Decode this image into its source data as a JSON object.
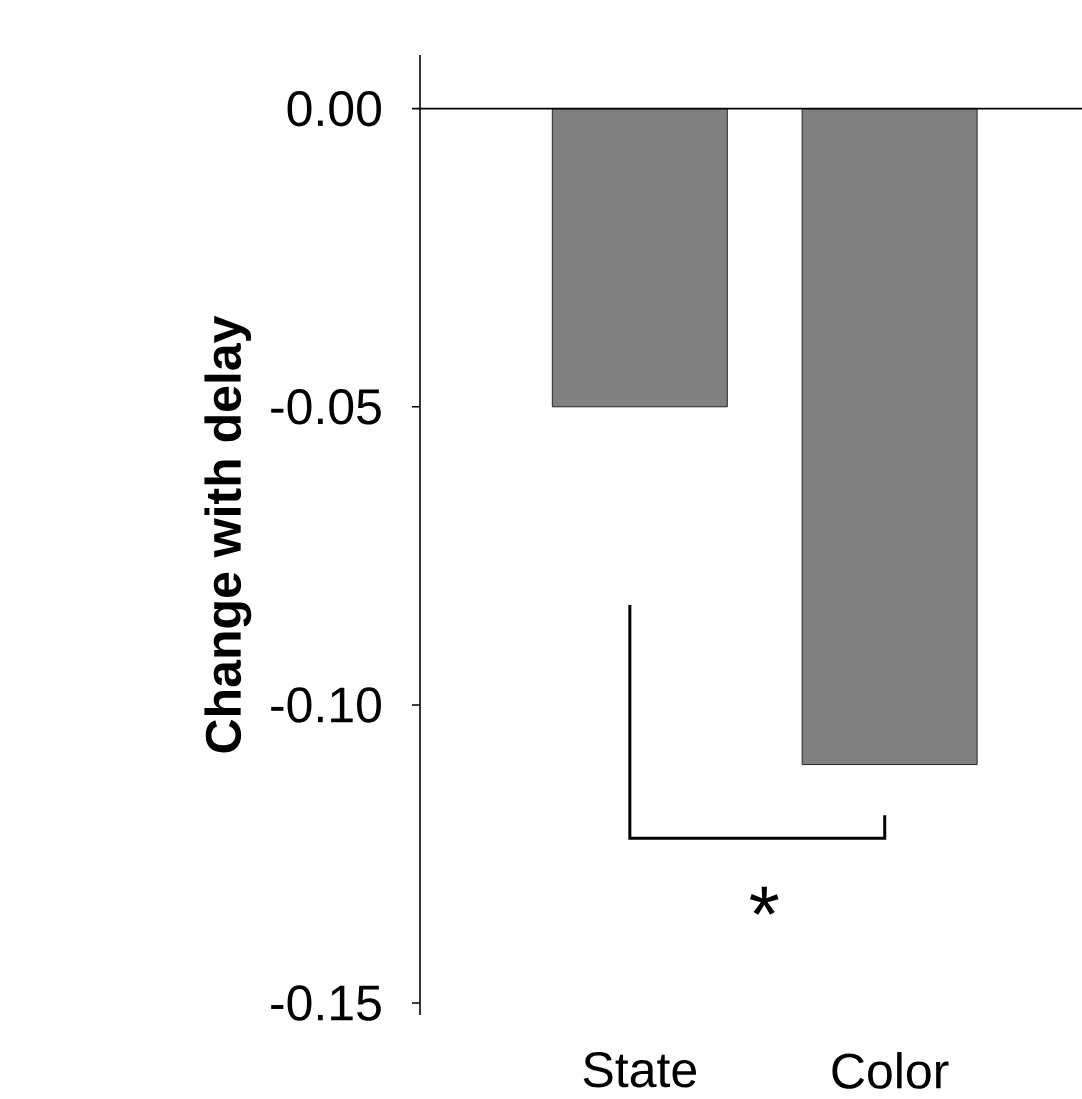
{
  "chart_data": {
    "type": "bar",
    "ylabel": "Change with  delay",
    "categories": [
      "State",
      "Color"
    ],
    "values": [
      -0.05,
      -0.11
    ],
    "color": "#808080",
    "ylim": [
      -0.152,
      0.009
    ],
    "yticks": [
      {
        "value": 0,
        "label": "0.00"
      },
      {
        "value": -0.05,
        "label": "-0.05"
      },
      {
        "value": -0.1,
        "label": "-0.10"
      },
      {
        "value": -0.15,
        "label": "-0.15"
      }
    ],
    "annotations": [
      "*"
    ],
    "ref_lines": [
      {
        "axis": "y",
        "value": 0
      }
    ]
  }
}
